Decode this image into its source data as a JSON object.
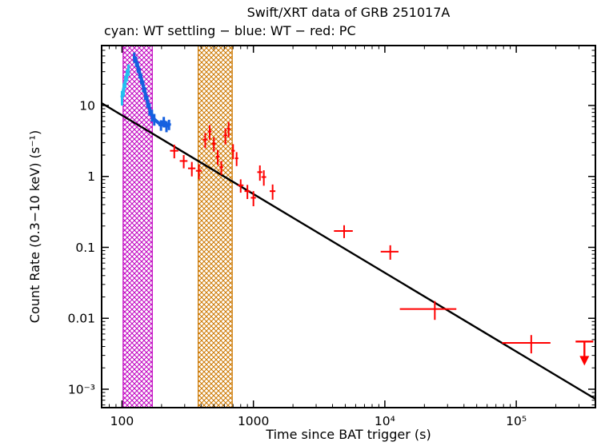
{
  "chart_data": {
    "type": "scatter",
    "title": "Swift/XRT data of GRB 251017A",
    "subtitle": "cyan: WT settling − blue: WT − red: PC",
    "xlabel": "Time since BAT trigger (s)",
    "ylabel": "Count Rate (0.3−10 keV) (s⁻¹)",
    "xscale": "log",
    "yscale": "log",
    "xlim": [
      70,
      400000
    ],
    "ylim": [
      0.00055,
      70
    ],
    "grid": false,
    "x_major_ticks": [
      {
        "v": 100,
        "label": "100"
      },
      {
        "v": 1000,
        "label": "1000"
      },
      {
        "v": 10000,
        "label": "10⁴"
      },
      {
        "v": 100000,
        "label": "10⁵"
      }
    ],
    "y_major_ticks": [
      {
        "v": 10,
        "label": "10"
      },
      {
        "v": 1,
        "label": "1"
      },
      {
        "v": 0.1,
        "label": "0.1"
      },
      {
        "v": 0.01,
        "label": "0.01"
      },
      {
        "v": 0.001,
        "label": "10⁻³"
      }
    ],
    "bands": [
      {
        "name": "wt-settling-band",
        "x1": 102,
        "x2": 170,
        "color": "#c000c0"
      },
      {
        "name": "flare-band",
        "x1": 380,
        "x2": 690,
        "color": "#cc7700"
      }
    ],
    "fit_line": {
      "color": "#000000",
      "points": [
        [
          70,
          10.8
        ],
        [
          400000,
          0.00073
        ]
      ]
    },
    "point_format": "[time_s, time_err_s, count_rate, count_rate_err]",
    "series": [
      {
        "name": "WT settling",
        "color": "#25c0f0",
        "connect": true,
        "points": [
          [
            100,
            2,
            13,
            3
          ],
          [
            103,
            2,
            17,
            3.5
          ],
          [
            106,
            2,
            22,
            4
          ],
          [
            109,
            2,
            27,
            5
          ],
          [
            112,
            2,
            32,
            6
          ]
        ]
      },
      {
        "name": "WT",
        "color": "#1560e0",
        "connect": true,
        "points": [
          [
            124,
            3,
            48,
            8
          ],
          [
            128,
            3,
            42,
            7
          ],
          [
            132,
            3,
            35,
            6
          ],
          [
            136,
            3,
            29,
            5
          ],
          [
            140,
            3,
            24,
            4
          ],
          [
            145,
            3,
            19,
            3.5
          ],
          [
            150,
            3,
            15,
            3
          ],
          [
            156,
            3,
            11.5,
            2.2
          ],
          [
            162,
            3,
            9,
            1.8
          ],
          [
            169,
            3,
            7.3,
            1.4
          ],
          [
            176,
            3,
            6.4,
            1.2
          ],
          [
            198,
            8,
            5.3,
            0.9
          ],
          [
            208,
            8,
            5.9,
            1
          ],
          [
            218,
            8,
            5.1,
            0.9
          ],
          [
            228,
            8,
            5.4,
            0.9
          ]
        ]
      },
      {
        "name": "PC",
        "color": "#ff0000",
        "connect": false,
        "points": [
          [
            250,
            18,
            2.3,
            0.5
          ],
          [
            295,
            20,
            1.65,
            0.35
          ],
          [
            340,
            22,
            1.3,
            0.3
          ],
          [
            385,
            20,
            1.2,
            0.28
          ],
          [
            430,
            18,
            3.3,
            0.8
          ],
          [
            465,
            15,
            4.3,
            1
          ],
          [
            500,
            18,
            2.9,
            0.65
          ],
          [
            535,
            17,
            1.9,
            0.45
          ],
          [
            570,
            18,
            1.35,
            0.3
          ],
          [
            612,
            20,
            3.8,
            0.95
          ],
          [
            648,
            17,
            4.7,
            1.15
          ],
          [
            700,
            22,
            2.3,
            0.55
          ],
          [
            745,
            22,
            1.8,
            0.4
          ],
          [
            800,
            40,
            0.75,
            0.16
          ],
          [
            900,
            45,
            0.62,
            0.14
          ],
          [
            1000,
            45,
            0.5,
            0.12
          ],
          [
            1120,
            50,
            1.15,
            0.28
          ],
          [
            1200,
            50,
            0.98,
            0.24
          ],
          [
            1400,
            70,
            0.62,
            0.15
          ],
          [
            4900,
            800,
            0.17,
            0.035
          ],
          [
            11000,
            1700,
            0.087,
            0.02
          ],
          [
            24000,
            11000,
            0.0135,
            0.004
          ],
          [
            130000,
            52000,
            0.0045,
            0.0013
          ]
        ]
      }
    ],
    "upper_limits": [
      {
        "x": 330000,
        "y": 0.0047,
        "color": "#ff0000"
      }
    ]
  }
}
